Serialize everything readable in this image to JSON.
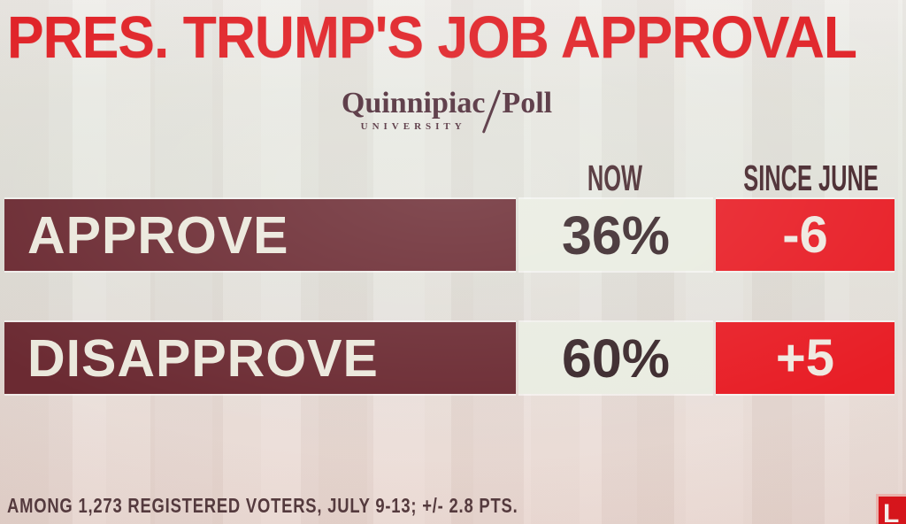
{
  "title": "PRES. TRUMP'S JOB APPROVAL",
  "logo": {
    "name": "Quinnipiac",
    "sub": "UNIVERSITY",
    "division": "Poll"
  },
  "chart_data": {
    "type": "table",
    "title": "PRES. TRUMP'S JOB APPROVAL",
    "source": "Quinnipiac University Poll",
    "columns": [
      "NOW",
      "SINCE JUNE"
    ],
    "rows": [
      {
        "label": "APPROVE",
        "now": "36%",
        "since_june": "-6",
        "now_value": 36,
        "since_june_value": -6
      },
      {
        "label": "DISAPPROVE",
        "now": "60%",
        "since_june": "+5",
        "now_value": 60,
        "since_june_value": 5
      }
    ],
    "footnote": "AMONG 1,273 REGISTERED VOTERS, JULY 9-13; +/- 2.8 PTS."
  },
  "footnote": "AMONG 1,273 REGISTERED VOTERS, JULY 9-13; +/- 2.8 PTS.",
  "live_bug": "L",
  "colors": {
    "title_red": "#e02227",
    "bar_maroon": "#6b2a32",
    "value_cell_bg": "#e9ece1",
    "delta_cell_red": "#e81e26",
    "header_text": "#46262c",
    "logo_maroon": "#4d2936"
  }
}
